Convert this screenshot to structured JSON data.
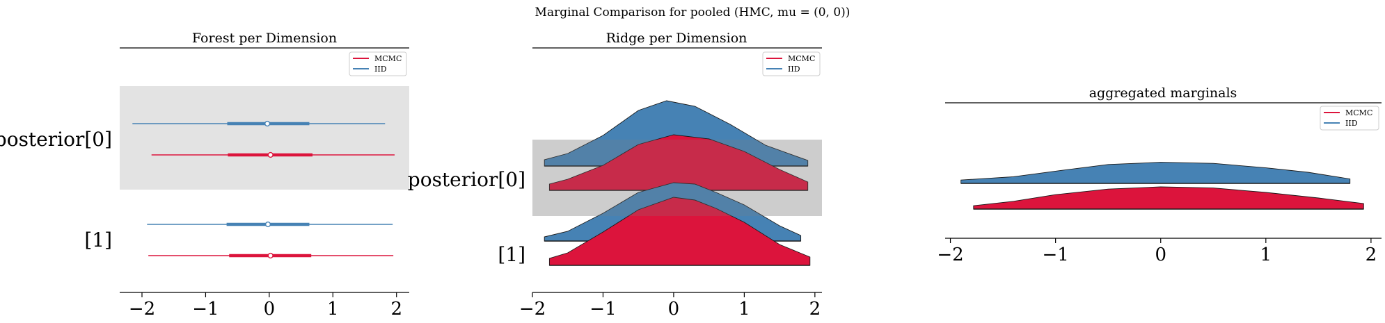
{
  "suptitle": "Marginal Comparison for pooled (HMC, mu = (0, 0))",
  "colors": {
    "mcmc": "#dc143c",
    "iid": "#4682b4",
    "band": "#e3e3e3"
  },
  "legend": [
    "MCMC",
    "IID"
  ],
  "x_ticks": [
    "−2",
    "−1",
    "0",
    "1",
    "2"
  ],
  "chart_data": [
    {
      "type": "forest",
      "title": "Forest per Dimension",
      "rows": [
        "posterior[0]",
        "[1]"
      ],
      "xlim": [
        -2.35,
        2.2
      ],
      "xticks": [
        -2,
        -1,
        0,
        1,
        2
      ],
      "series": [
        {
          "name": "MCMC",
          "color": "#dc143c",
          "intervals": [
            {
              "row": "posterior[0]",
              "low": -1.85,
              "high": 1.97,
              "q1": -0.65,
              "q3": 0.68,
              "median": 0.02
            },
            {
              "row": "[1]",
              "low": -1.9,
              "high": 1.95,
              "q1": -0.63,
              "q3": 0.66,
              "median": 0.02
            }
          ]
        },
        {
          "name": "IID",
          "color": "#4682b4",
          "intervals": [
            {
              "row": "posterior[0]",
              "low": -2.15,
              "high": 1.82,
              "q1": -0.66,
              "q3": 0.63,
              "median": -0.03
            },
            {
              "row": "[1]",
              "low": -1.92,
              "high": 1.94,
              "q1": -0.67,
              "q3": 0.63,
              "median": -0.02
            }
          ]
        }
      ]
    },
    {
      "type": "ridge",
      "title": "Ridge per Dimension",
      "rows": [
        "posterior[0]",
        "[1]"
      ],
      "xlim": [
        -2.0,
        2.1
      ],
      "xticks": [
        -2,
        -1,
        0,
        1,
        2
      ],
      "series": [
        {
          "name": "MCMC",
          "color": "#dc143c",
          "densities": [
            {
              "row": "posterior[0]",
              "x": [
                -1.76,
                -1.5,
                -1.0,
                -0.5,
                0.0,
                0.5,
                1.0,
                1.5,
                1.9
              ],
              "y": [
                0.09,
                0.16,
                0.36,
                0.66,
                0.8,
                0.74,
                0.56,
                0.3,
                0.12
              ]
            },
            {
              "row": "[1]",
              "x": [
                -1.76,
                -1.5,
                -1.0,
                -0.5,
                0.0,
                0.3,
                0.6,
                1.0,
                1.5,
                1.93
              ],
              "y": [
                0.1,
                0.18,
                0.48,
                0.8,
                0.98,
                0.94,
                0.82,
                0.62,
                0.3,
                0.12
              ]
            }
          ]
        },
        {
          "name": "IID",
          "color": "#4682b4",
          "densities": [
            {
              "row": "posterior[0]",
              "x": [
                -1.83,
                -1.5,
                -1.0,
                -0.5,
                -0.1,
                0.3,
                0.8,
                1.3,
                1.9
              ],
              "y": [
                0.09,
                0.18,
                0.44,
                0.8,
                0.94,
                0.86,
                0.6,
                0.3,
                0.08
              ]
            },
            {
              "row": "[1]",
              "x": [
                -1.83,
                -1.5,
                -1.0,
                -0.5,
                0.0,
                0.3,
                0.6,
                1.0,
                1.5,
                1.8
              ],
              "y": [
                0.06,
                0.14,
                0.4,
                0.7,
                0.84,
                0.82,
                0.7,
                0.52,
                0.22,
                0.08
              ]
            }
          ]
        }
      ]
    },
    {
      "type": "ridge",
      "title": "aggregated marginals",
      "xlim": [
        -2.05,
        2.1
      ],
      "xticks": [
        -2,
        -1,
        0,
        1,
        2
      ],
      "series": [
        {
          "name": "MCMC",
          "color": "#dc143c",
          "x": [
            -1.78,
            -1.4,
            -1.0,
            -0.5,
            0.0,
            0.5,
            1.0,
            1.5,
            1.93
          ],
          "y": [
            0.06,
            0.14,
            0.26,
            0.36,
            0.4,
            0.38,
            0.3,
            0.2,
            0.1
          ]
        },
        {
          "name": "IID",
          "color": "#4682b4",
          "x": [
            -1.9,
            -1.4,
            -1.0,
            -0.5,
            0.0,
            0.5,
            1.0,
            1.4,
            1.8
          ],
          "y": [
            0.06,
            0.12,
            0.22,
            0.34,
            0.38,
            0.36,
            0.28,
            0.2,
            0.08
          ]
        }
      ]
    }
  ]
}
